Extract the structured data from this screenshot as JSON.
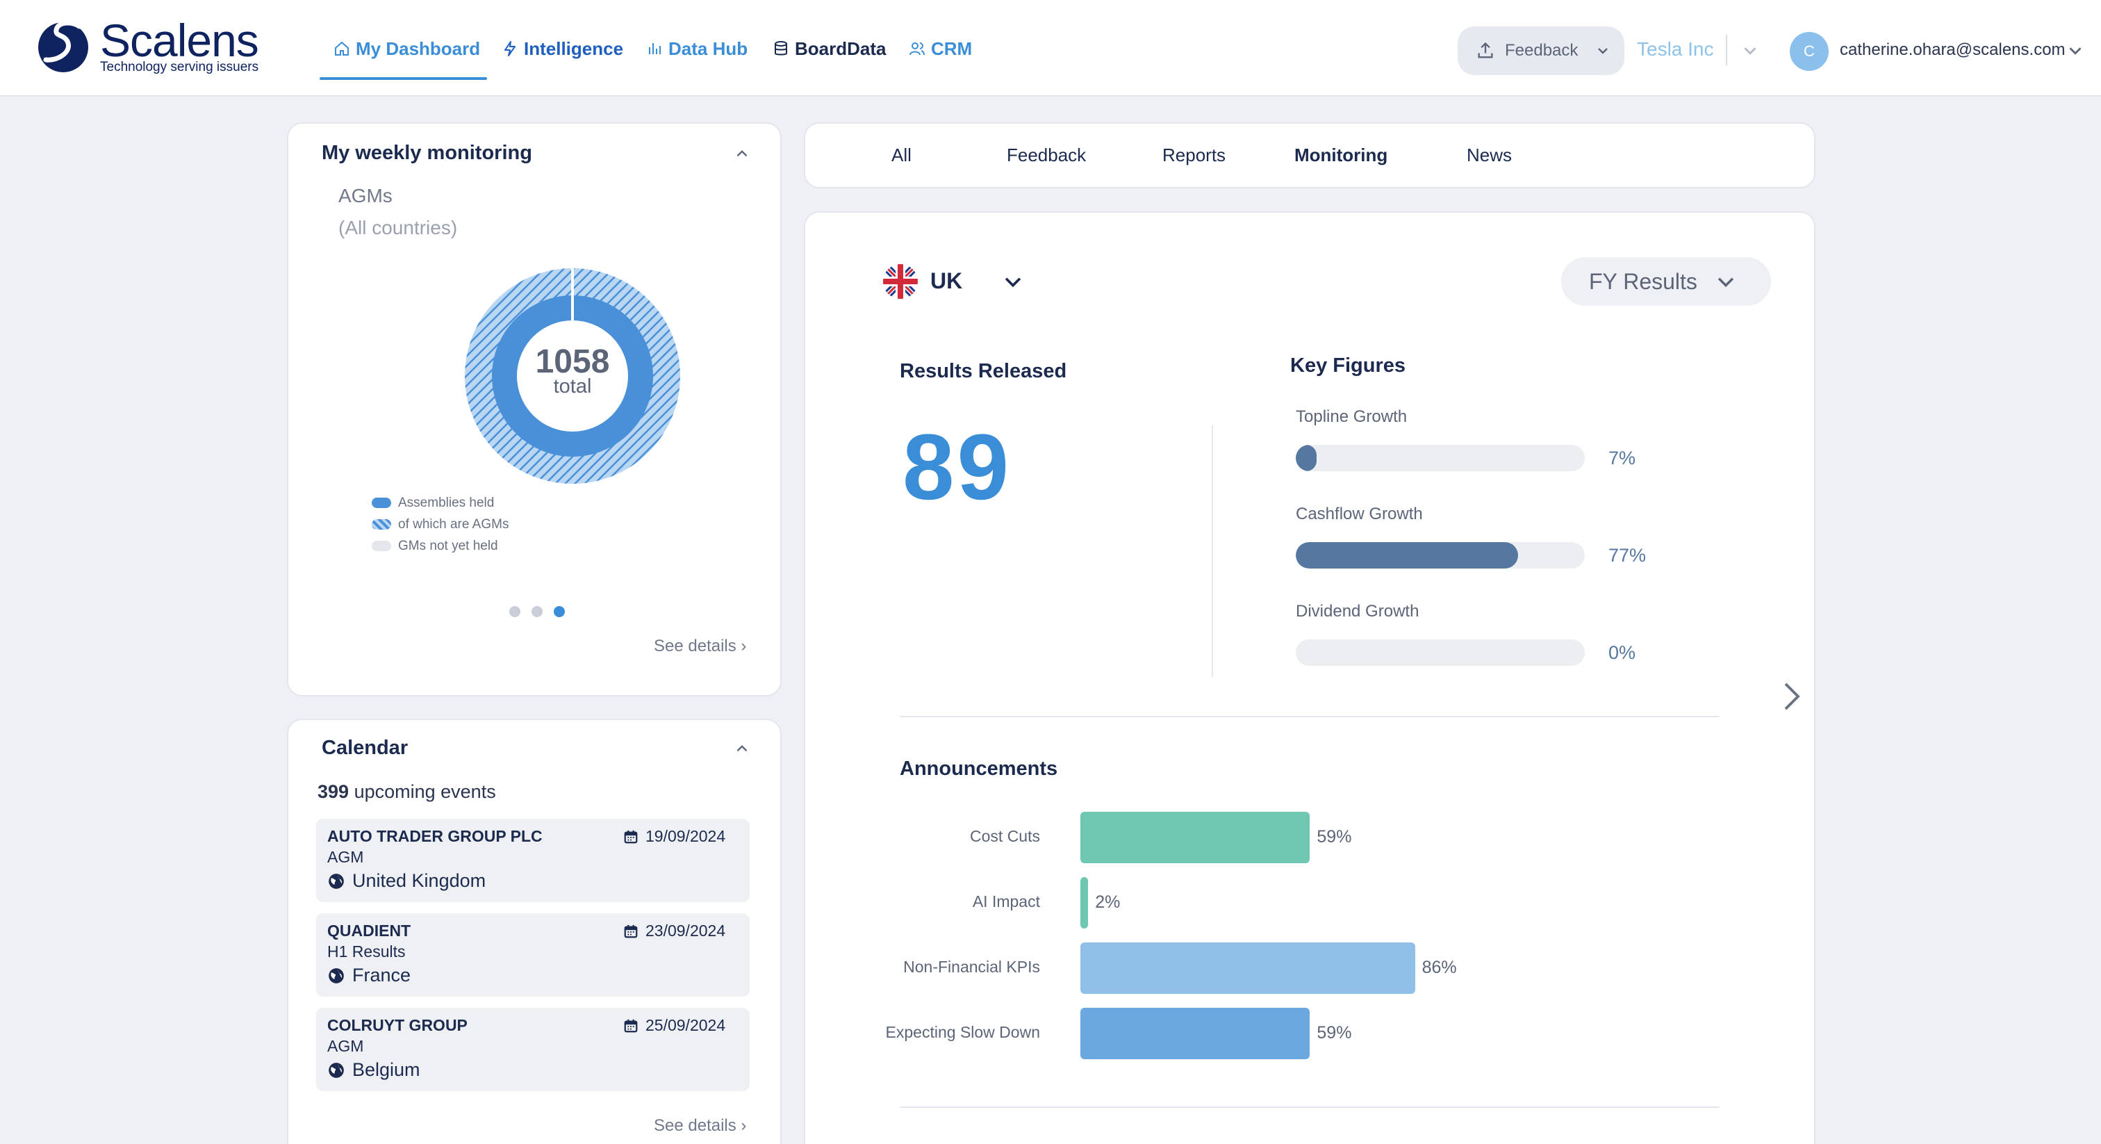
{
  "brand": {
    "name": "Scalens",
    "tagline": "Technology serving issuers"
  },
  "nav": {
    "items": [
      {
        "label": "My Dashboard",
        "icon": "home-icon",
        "active": true
      },
      {
        "label": "Intelligence",
        "icon": "bolt-icon"
      },
      {
        "label": "Data Hub",
        "icon": "bar-chart-icon"
      },
      {
        "label": "BoardData",
        "icon": "database-icon"
      },
      {
        "label": "CRM",
        "icon": "users-icon"
      }
    ]
  },
  "header": {
    "feedback_label": "Feedback",
    "company": "Tesla Inc",
    "user_initial": "C",
    "user_email": "catherine.ohara@scalens.com"
  },
  "monitoring": {
    "title": "My weekly monitoring",
    "subject": "AGMs",
    "scope": "(All countries)",
    "total_value": "1058",
    "total_label": "total",
    "legend": [
      "Assemblies held",
      "of which are AGMs",
      "GMs not yet held"
    ],
    "carousel_active_index": 2,
    "see_details": "See details"
  },
  "calendar": {
    "title": "Calendar",
    "count": "399",
    "count_suffix": "upcoming events",
    "events": [
      {
        "company": "AUTO TRADER GROUP PLC",
        "type": "AGM",
        "country": "United Kingdom",
        "date": "19/09/2024"
      },
      {
        "company": "QUADIENT",
        "type": "H1 Results",
        "country": "France",
        "date": "23/09/2024"
      },
      {
        "company": "COLRUYT GROUP",
        "type": "AGM",
        "country": "Belgium",
        "date": "25/09/2024"
      }
    ],
    "see_details": "See details"
  },
  "tabs": {
    "items": [
      "All",
      "Feedback",
      "Reports",
      "Monitoring",
      "News"
    ],
    "active": "Monitoring"
  },
  "main": {
    "region": "UK",
    "period": "FY Results",
    "results_label": "Results Released",
    "results_value": "89",
    "key_figures_label": "Key Figures",
    "key_figures": [
      {
        "name": "Topline Growth",
        "value": "7%",
        "fraction": 0.07
      },
      {
        "name": "Cashflow Growth",
        "value": "77%",
        "fraction": 0.77
      },
      {
        "name": "Dividend Growth",
        "value": "0%",
        "fraction": 0.0
      }
    ],
    "announcements_label": "Announcements",
    "announcements": [
      {
        "name": "Cost Cuts",
        "value": "59%",
        "fraction": 0.59,
        "color": "#6ec7b0"
      },
      {
        "name": "AI Impact",
        "value": "2%",
        "fraction": 0.02,
        "color": "#6ec7b0"
      },
      {
        "name": "Non-Financial KPIs",
        "value": "86%",
        "fraction": 0.86,
        "color": "#90bfe8"
      },
      {
        "name": "Expecting Slow Down",
        "value": "59%",
        "fraction": 0.59,
        "color": "#6aa7de"
      }
    ]
  },
  "colors": {
    "accent": "#3a8ed8",
    "brand_navy": "#0f2360",
    "bar_slate": "#56779f"
  }
}
